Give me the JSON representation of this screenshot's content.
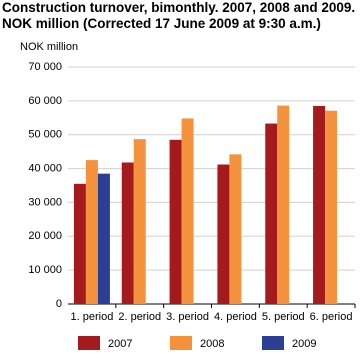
{
  "chart_data": {
    "type": "bar",
    "title": "Construction turnover, bimonthly. 2007, 2008 and 2009. NOK million (Corrected 17 June 2009 at 9:30 a.m.)",
    "y_label": "NOK million",
    "categories": [
      "1. period",
      "2. period",
      "3. period",
      "4. period",
      "5. period",
      "6. period"
    ],
    "series": [
      {
        "name": "2007",
        "color": "#a31b1f",
        "values": [
          35500,
          41800,
          48500,
          41200,
          53300,
          58500
        ]
      },
      {
        "name": "2008",
        "color": "#f5923e",
        "values": [
          42500,
          48700,
          54800,
          44200,
          58600,
          57100
        ]
      },
      {
        "name": "2009",
        "color": "#2b3f94",
        "values": [
          38500,
          null,
          null,
          null,
          null,
          null
        ]
      }
    ],
    "ylim": [
      0,
      70000
    ],
    "yticks": [
      0,
      {
        "value": 10000,
        "label": "10 000"
      },
      {
        "value": 20000,
        "label": "20 000"
      },
      {
        "value": 30000,
        "label": "30 000"
      },
      {
        "value": 40000,
        "label": "40 000"
      },
      {
        "value": 50000,
        "label": "50 000"
      },
      {
        "value": 60000,
        "label": "60 000"
      },
      {
        "value": 70000,
        "label": "70 000"
      }
    ],
    "grid": true
  }
}
